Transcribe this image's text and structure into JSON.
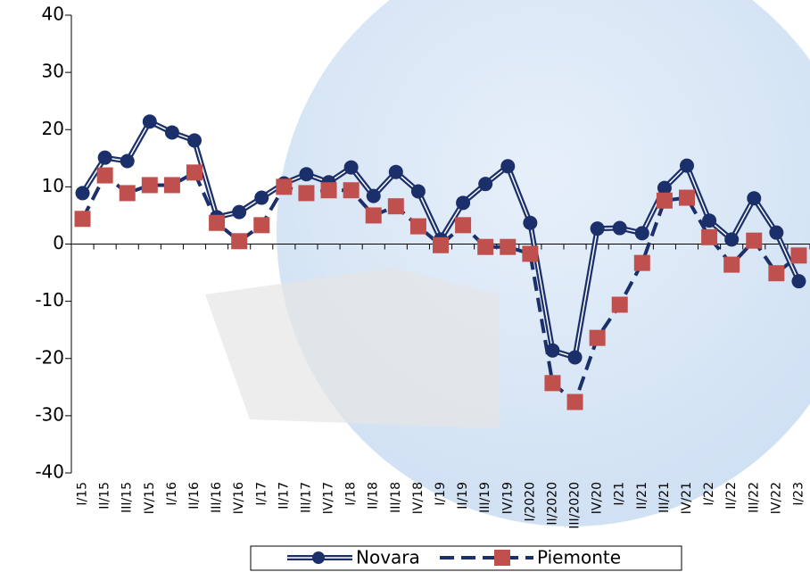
{
  "chart_data": {
    "type": "line",
    "categories": [
      "I/15",
      "II/15",
      "III/15",
      "IV/15",
      "I/16",
      "II/16",
      "III/16",
      "IV/16",
      "I/17",
      "II/17",
      "III/17",
      "IV/17",
      "I/18",
      "II/18",
      "III/18",
      "IV/18",
      "I/19",
      "II/19",
      "III/19",
      "IV/19",
      "I/2020",
      "II/2020",
      "III/2020",
      "IV/20",
      "I/21",
      "II/21",
      "III/21",
      "IV/21",
      "I/22",
      "II/22",
      "III/22",
      "IV/22",
      "I/23"
    ],
    "series": [
      {
        "name": "Novara",
        "color": "#1b2f6b",
        "values": [
          8.9,
          15.1,
          14.5,
          21.4,
          19.5,
          18.1,
          4.7,
          5.6,
          8.1,
          10.6,
          12.2,
          10.8,
          13.4,
          8.4,
          12.6,
          9.2,
          0.8,
          7.2,
          10.5,
          13.6,
          3.7,
          -18.6,
          -19.8,
          2.7,
          2.8,
          1.9,
          9.8,
          13.7,
          4.1,
          0.8,
          8.0,
          2.0,
          -6.5
        ]
      },
      {
        "name": "Piemonte",
        "color": "#c0504d",
        "values": [
          4.4,
          12.0,
          8.9,
          10.3,
          10.3,
          12.5,
          3.7,
          0.5,
          3.3,
          10.0,
          8.9,
          9.4,
          9.4,
          5.0,
          6.6,
          3.1,
          -0.2,
          3.3,
          -0.5,
          -0.5,
          -1.7,
          -24.3,
          -27.6,
          -16.4,
          -10.6,
          -3.3,
          7.6,
          8.1,
          1.2,
          -3.6,
          0.6,
          -5.1,
          -2.0
        ]
      }
    ],
    "ylim": [
      -40,
      40
    ],
    "yticks": [
      -40,
      -30,
      -20,
      -10,
      0,
      10,
      20,
      30,
      40
    ]
  }
}
